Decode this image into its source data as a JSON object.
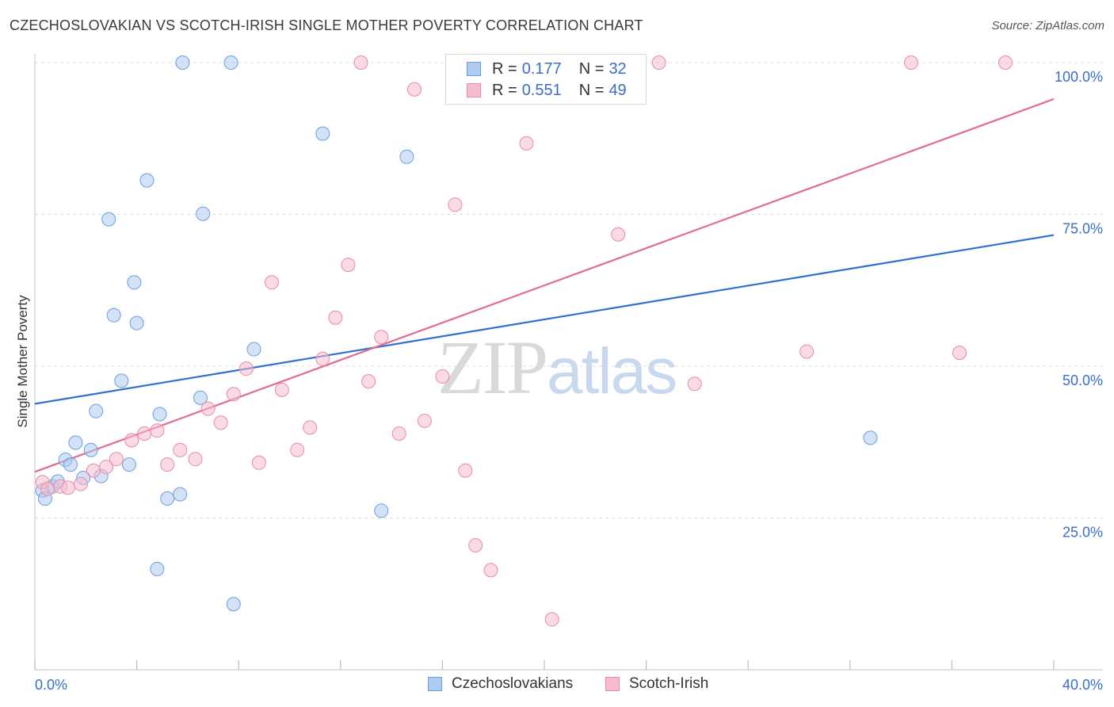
{
  "title": "CZECHOSLOVAKIAN VS SCOTCH-IRISH SINGLE MOTHER POVERTY CORRELATION CHART",
  "source": "Source: ZipAtlas.com",
  "watermark": {
    "zip": "ZIP",
    "atlas": "atlas"
  },
  "legend": {
    "rows": [
      {
        "r_label": "R =",
        "r_value": "0.177",
        "n_label": "N =",
        "n_value": "32"
      },
      {
        "r_label": "R =",
        "r_value": "0.551",
        "n_label": "N =",
        "n_value": "49"
      }
    ]
  },
  "bottom_legend": {
    "czech": "Czechoslovakians",
    "scotch": "Scotch-Irish"
  },
  "colors": {
    "czech_fill": "#aecbf0",
    "czech_stroke": "#6a9fde",
    "czech_line": "#2f6fce",
    "scotch_fill": "#f6bccd",
    "scotch_stroke": "#e98aa8",
    "scotch_line": "#e06b93",
    "axis_label": "#3b6ec9",
    "grid": "#dcdcdc"
  },
  "chart_data": {
    "type": "scatter",
    "title": "CZECHOSLOVAKIAN VS SCOTCH-IRISH SINGLE MOTHER POVERTY CORRELATION CHART",
    "xlabel": "",
    "ylabel": "Single Mother Poverty",
    "xlim": [
      0,
      40
    ],
    "ylim": [
      0,
      102
    ],
    "x_tick_labels": [
      "0.0%",
      "40.0%"
    ],
    "y_ticks": [
      25,
      50,
      75,
      100
    ],
    "y_tick_labels": [
      "25.0%",
      "50.0%",
      "75.0%",
      "100.0%"
    ],
    "grid": true,
    "legend_position": "top-center",
    "series": [
      {
        "name": "Czechoslovakians",
        "r": 0.177,
        "n": 32,
        "trend": [
          [
            0,
            43.8
          ],
          [
            40,
            71.6
          ]
        ],
        "points": [
          [
            0.3,
            29.5
          ],
          [
            0.4,
            28.2
          ],
          [
            0.7,
            30.2
          ],
          [
            0.9,
            31.0
          ],
          [
            1.2,
            34.6
          ],
          [
            1.4,
            33.8
          ],
          [
            1.6,
            37.4
          ],
          [
            1.9,
            31.6
          ],
          [
            2.2,
            36.2
          ],
          [
            2.4,
            42.6
          ],
          [
            2.6,
            31.9
          ],
          [
            2.9,
            74.2
          ],
          [
            3.1,
            58.4
          ],
          [
            3.4,
            47.6
          ],
          [
            3.7,
            33.8
          ],
          [
            3.9,
            63.8
          ],
          [
            4.0,
            57.1
          ],
          [
            4.4,
            80.6
          ],
          [
            4.8,
            16.6
          ],
          [
            4.9,
            42.1
          ],
          [
            5.2,
            28.2
          ],
          [
            5.7,
            28.9
          ],
          [
            5.8,
            100.0
          ],
          [
            6.5,
            44.8
          ],
          [
            6.6,
            75.1
          ],
          [
            7.7,
            100.0
          ],
          [
            7.8,
            10.8
          ],
          [
            8.6,
            52.8
          ],
          [
            11.3,
            88.3
          ],
          [
            13.6,
            26.2
          ],
          [
            14.6,
            84.5
          ],
          [
            32.8,
            38.2
          ]
        ]
      },
      {
        "name": "Scotch-Irish",
        "r": 0.551,
        "n": 49,
        "trend": [
          [
            0,
            32.6
          ],
          [
            40,
            94.0
          ]
        ],
        "points": [
          [
            0.3,
            30.9
          ],
          [
            0.5,
            29.8
          ],
          [
            1.0,
            30.2
          ],
          [
            1.3,
            30.0
          ],
          [
            1.8,
            30.6
          ],
          [
            2.3,
            32.8
          ],
          [
            2.8,
            33.4
          ],
          [
            3.2,
            34.7
          ],
          [
            3.8,
            37.8
          ],
          [
            4.3,
            38.9
          ],
          [
            4.8,
            39.4
          ],
          [
            5.2,
            33.8
          ],
          [
            5.7,
            36.2
          ],
          [
            6.3,
            34.7
          ],
          [
            6.8,
            43.0
          ],
          [
            7.3,
            40.7
          ],
          [
            7.8,
            45.4
          ],
          [
            8.3,
            49.6
          ],
          [
            8.8,
            34.1
          ],
          [
            9.3,
            63.8
          ],
          [
            9.7,
            46.1
          ],
          [
            10.3,
            36.2
          ],
          [
            10.8,
            39.9
          ],
          [
            11.3,
            51.2
          ],
          [
            11.8,
            58.0
          ],
          [
            12.3,
            66.7
          ],
          [
            12.8,
            100.0
          ],
          [
            13.1,
            47.5
          ],
          [
            13.6,
            54.8
          ],
          [
            14.3,
            38.9
          ],
          [
            14.9,
            95.6
          ],
          [
            15.3,
            41.0
          ],
          [
            16.0,
            48.3
          ],
          [
            16.5,
            76.6
          ],
          [
            16.9,
            32.8
          ],
          [
            17.3,
            20.5
          ],
          [
            17.9,
            16.4
          ],
          [
            18.6,
            100.0
          ],
          [
            19.3,
            86.7
          ],
          [
            20.3,
            8.3
          ],
          [
            21.0,
            100.0
          ],
          [
            21.4,
            100.0
          ],
          [
            22.9,
            71.7
          ],
          [
            24.5,
            100.0
          ],
          [
            25.9,
            47.1
          ],
          [
            30.3,
            52.4
          ],
          [
            34.4,
            100.0
          ],
          [
            36.3,
            52.2
          ],
          [
            38.1,
            100.0
          ]
        ]
      }
    ]
  }
}
